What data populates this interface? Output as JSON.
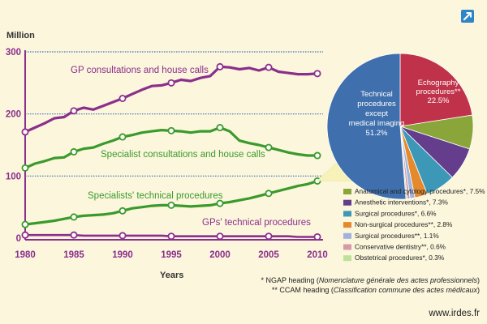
{
  "colors": {
    "background": "#fbf6dc",
    "gp_consult": "#8b2f8c",
    "specialist_consult": "#3a9a2c",
    "specialist_technical": "#3a9a2c",
    "gp_technical": "#8b2f8c",
    "axis": "#8b2f8c",
    "gridline": "#3d6fb5",
    "marker_fill": "#ffffff",
    "icon": "#2e86c8"
  },
  "icon": {
    "name": "external-link-icon"
  },
  "chart_data": [
    {
      "type": "line",
      "ylabel": "Million",
      "xlabel": "Years",
      "ylim": [
        0,
        300
      ],
      "xlim": [
        1980,
        2010
      ],
      "y_ticks": [
        0,
        100,
        200,
        300
      ],
      "x_ticks": [
        1980,
        1985,
        1990,
        1995,
        2000,
        2005,
        2010
      ],
      "gridlines_y": [
        100,
        200,
        300
      ],
      "x": [
        1980,
        1981,
        1982,
        1983,
        1984,
        1985,
        1986,
        1987,
        1988,
        1989,
        1990,
        1991,
        1992,
        1993,
        1994,
        1995,
        1996,
        1997,
        1998,
        1999,
        2000,
        2001,
        2002,
        2003,
        2004,
        2005,
        2006,
        2007,
        2008,
        2009,
        2010
      ],
      "series": [
        {
          "name": "GP consultations and house calls",
          "values": [
            171,
            178,
            185,
            193,
            195,
            205,
            210,
            207,
            213,
            219,
            225,
            232,
            239,
            245,
            246,
            250,
            255,
            253,
            258,
            261,
            276,
            275,
            272,
            274,
            270,
            275,
            268,
            266,
            264,
            264,
            265
          ]
        },
        {
          "name": "Specialist consultations and house calls",
          "values": [
            113,
            120,
            124,
            129,
            130,
            139,
            144,
            146,
            152,
            157,
            163,
            166,
            170,
            172,
            174,
            173,
            172,
            170,
            172,
            172,
            178,
            172,
            157,
            153,
            150,
            146,
            142,
            138,
            135,
            133,
            133
          ]
        },
        {
          "name": "Specialists' technical procedures",
          "values": [
            22,
            24,
            26,
            28,
            31,
            34,
            36,
            37,
            38,
            40,
            44,
            48,
            50,
            52,
            53,
            53,
            52,
            51,
            52,
            53,
            56,
            58,
            61,
            64,
            68,
            72,
            76,
            80,
            84,
            87,
            92
          ]
        },
        {
          "name": "GPs' technical procedures",
          "values": [
            5,
            5,
            5,
            5,
            5,
            5,
            4,
            4,
            4,
            4,
            4,
            4,
            4,
            4,
            4,
            3,
            3,
            3,
            3,
            3,
            3,
            3,
            3,
            3,
            3,
            3,
            3,
            3,
            2,
            2,
            2
          ]
        }
      ],
      "markers_at": [
        1980,
        1985,
        1990,
        1995,
        2000,
        2005,
        2010
      ]
    },
    {
      "type": "pie",
      "slices": [
        {
          "label": "Technical procedures except medical imaging",
          "percent": "51.2%",
          "value": 51.2,
          "color": "#3f6fac",
          "text_color": "#ffffff"
        },
        {
          "label": "Echography procedures**",
          "percent": "22.5%",
          "value": 22.5,
          "color": "#c0324a",
          "text_color": "#ffffff"
        },
        {
          "label": "Anatomical and cytology procedures*",
          "percent": "7.5%",
          "value": 7.5,
          "color": "#8aa63a"
        },
        {
          "label": "Anesthetic interventions*",
          "percent": "7.3%",
          "value": 7.3,
          "color": "#643d8c"
        },
        {
          "label": "Surgical procedures*",
          "percent": "6.6%",
          "value": 6.6,
          "color": "#3d98b8"
        },
        {
          "label": "Non-surgical procedures**",
          "percent": "2.8%",
          "value": 2.8,
          "color": "#e58a2c"
        },
        {
          "label": "Surgical procedures**",
          "percent": "1.1%",
          "value": 1.1,
          "color": "#9fb3dc"
        },
        {
          "label": "Conservative dentistry**",
          "percent": "0.6%",
          "value": 0.6,
          "color": "#d69aa6"
        },
        {
          "label": "Obstetrical procedures*",
          "percent": "0.3%",
          "value": 0.3,
          "color": "#bfe09a"
        }
      ],
      "legend_entries": [
        "Anatomical and cytology procedures*, 7.5%",
        "Anesthetic interventions*, 7.3%",
        "Surgical procedures*, 6.6%",
        "Non-surgical procedures**, 2.8%",
        "Surgical procedures**, 1.1%",
        "Conservative dentistry**, 0.6%",
        "Obstetrical procedures*, 0.3%"
      ],
      "inner_labels": {
        "technical": [
          "Technical",
          "procedures",
          "except",
          "medical imaging",
          "51.2%"
        ],
        "echography": [
          "Echography",
          "procedures**",
          "22.5%"
        ]
      }
    }
  ],
  "footnotes": {
    "ngap_prefix": "* NGAP heading (",
    "ngap_italic": "Nomenclature générale des actes professionnels",
    "ngap_suffix": ")",
    "ccam_prefix": "** CCAM heading (",
    "ccam_italic": "Classification commune des actes médicaux",
    "ccam_suffix": ")"
  },
  "source_url": "www.irdes.fr"
}
